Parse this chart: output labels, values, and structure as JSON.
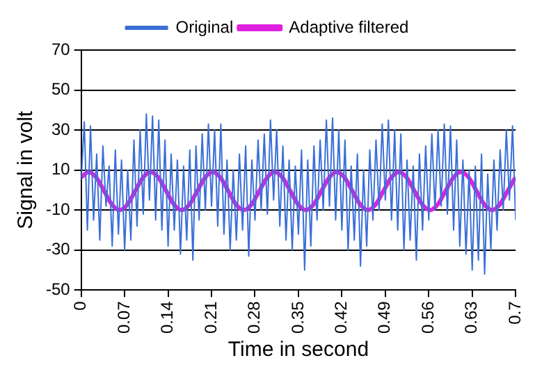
{
  "chart_data": {
    "type": "line",
    "xlabel": "Time in second",
    "ylabel": "Signal in volt",
    "xlim": [
      0,
      0.7
    ],
    "xticks": [
      0,
      0.07,
      0.14,
      0.21,
      0.28,
      0.35,
      0.42,
      0.49,
      0.56,
      0.63,
      0.7
    ],
    "ylim": [
      -50,
      70
    ],
    "yticks": [
      -50,
      -30,
      -10,
      10,
      30,
      50,
      70
    ],
    "grid": "y",
    "legend": "top",
    "marker": "none",
    "line_style": "solid",
    "series": [
      {
        "name": "Original",
        "color": "#3a6fd8",
        "x": [
          0,
          0.005,
          0.01,
          0.015,
          0.02,
          0.025,
          0.03,
          0.035,
          0.04,
          0.045,
          0.05,
          0.055,
          0.06,
          0.065,
          0.07,
          0.075,
          0.08,
          0.085,
          0.09,
          0.095,
          0.1,
          0.105,
          0.11,
          0.115,
          0.12,
          0.125,
          0.13,
          0.135,
          0.14,
          0.145,
          0.15,
          0.155,
          0.16,
          0.165,
          0.17,
          0.175,
          0.18,
          0.185,
          0.19,
          0.195,
          0.2,
          0.205,
          0.21,
          0.215,
          0.22,
          0.225,
          0.23,
          0.235,
          0.24,
          0.245,
          0.25,
          0.255,
          0.26,
          0.265,
          0.27,
          0.275,
          0.28,
          0.285,
          0.29,
          0.295,
          0.3,
          0.305,
          0.31,
          0.315,
          0.32,
          0.325,
          0.33,
          0.335,
          0.34,
          0.345,
          0.35,
          0.355,
          0.36,
          0.365,
          0.37,
          0.375,
          0.38,
          0.385,
          0.39,
          0.395,
          0.4,
          0.405,
          0.41,
          0.415,
          0.42,
          0.425,
          0.43,
          0.435,
          0.44,
          0.445,
          0.45,
          0.455,
          0.46,
          0.465,
          0.47,
          0.475,
          0.48,
          0.485,
          0.49,
          0.495,
          0.5,
          0.505,
          0.51,
          0.515,
          0.52,
          0.525,
          0.53,
          0.535,
          0.54,
          0.545,
          0.55,
          0.555,
          0.56,
          0.565,
          0.57,
          0.575,
          0.58,
          0.585,
          0.59,
          0.595,
          0.6,
          0.605,
          0.61,
          0.615,
          0.62,
          0.625,
          0.63,
          0.635,
          0.64,
          0.645,
          0.65,
          0.655,
          0.66,
          0.665,
          0.67,
          0.675,
          0.68,
          0.685,
          0.69,
          0.695,
          0.7
        ],
        "values": [
          5,
          34,
          -20,
          32,
          -15,
          18,
          -25,
          22,
          -8,
          12,
          -28,
          20,
          -22,
          15,
          -30,
          10,
          -25,
          25,
          -18,
          30,
          -12,
          38,
          -5,
          37,
          -15,
          35,
          -20,
          25,
          -28,
          18,
          -20,
          15,
          -32,
          12,
          -25,
          20,
          -35,
          22,
          -15,
          28,
          -10,
          33,
          -8,
          30,
          -18,
          33,
          -22,
          15,
          -30,
          10,
          -25,
          18,
          -20,
          22,
          -33,
          15,
          -15,
          25,
          -10,
          28,
          -12,
          35,
          -5,
          30,
          -18,
          22,
          -25,
          15,
          -30,
          12,
          -22,
          20,
          -40,
          15,
          -28,
          22,
          -15,
          25,
          -10,
          35,
          -8,
          36,
          -15,
          30,
          -20,
          25,
          -30,
          12,
          -25,
          18,
          -38,
          10,
          -28,
          20,
          -15,
          25,
          -10,
          33,
          -5,
          35,
          -15,
          30,
          -20,
          28,
          -30,
          15,
          -25,
          12,
          -35,
          18,
          -20,
          22,
          -15,
          28,
          -10,
          30,
          -8,
          33,
          -12,
          32,
          -20,
          25,
          -28,
          15,
          -32,
          10,
          -40,
          12,
          -35,
          18,
          -42,
          8,
          -30,
          15,
          -20,
          20,
          -10,
          30,
          -5,
          32,
          -15
        ]
      },
      {
        "name": "Adaptive filtered",
        "color": "#e020e0",
        "x": [
          0,
          0.012,
          0.0245,
          0.037,
          0.0495,
          0.062,
          0.0745,
          0.087,
          0.0995,
          0.112,
          0.1245,
          0.137,
          0.1495,
          0.162,
          0.1745,
          0.187,
          0.1995,
          0.212,
          0.2245,
          0.237,
          0.2495,
          0.262,
          0.2745,
          0.287,
          0.2995,
          0.312,
          0.3245,
          0.337,
          0.3495,
          0.362,
          0.3745,
          0.387,
          0.3995,
          0.412,
          0.4245,
          0.437,
          0.4495,
          0.462,
          0.4745,
          0.487,
          0.4995,
          0.512,
          0.5245,
          0.537,
          0.5495,
          0.562,
          0.5745,
          0.587,
          0.5995,
          0.612,
          0.6245,
          0.637,
          0.6495,
          0.662,
          0.6745,
          0.687,
          0.6995,
          0.7
        ],
        "values": [
          6.4,
          9,
          6.2,
          -0.5,
          -7.2,
          -10,
          -7.2,
          -0.5,
          6.2,
          9,
          6.2,
          -0.5,
          -7.2,
          -10,
          -7.2,
          -0.5,
          6.2,
          9,
          6.2,
          -0.5,
          -7.2,
          -10,
          -7.2,
          -0.5,
          6.2,
          9,
          6.2,
          -0.5,
          -7.2,
          -10,
          -7.2,
          -0.5,
          6.2,
          9,
          6.2,
          -0.5,
          -7.2,
          -10,
          -7.2,
          -0.5,
          6.2,
          9,
          6.2,
          -0.5,
          -7.2,
          -10,
          -7.2,
          -0.5,
          6.2,
          9,
          6.2,
          -0.5,
          -7.2,
          -10,
          -7.2,
          -0.5,
          6.2,
          6.4
        ]
      }
    ]
  }
}
